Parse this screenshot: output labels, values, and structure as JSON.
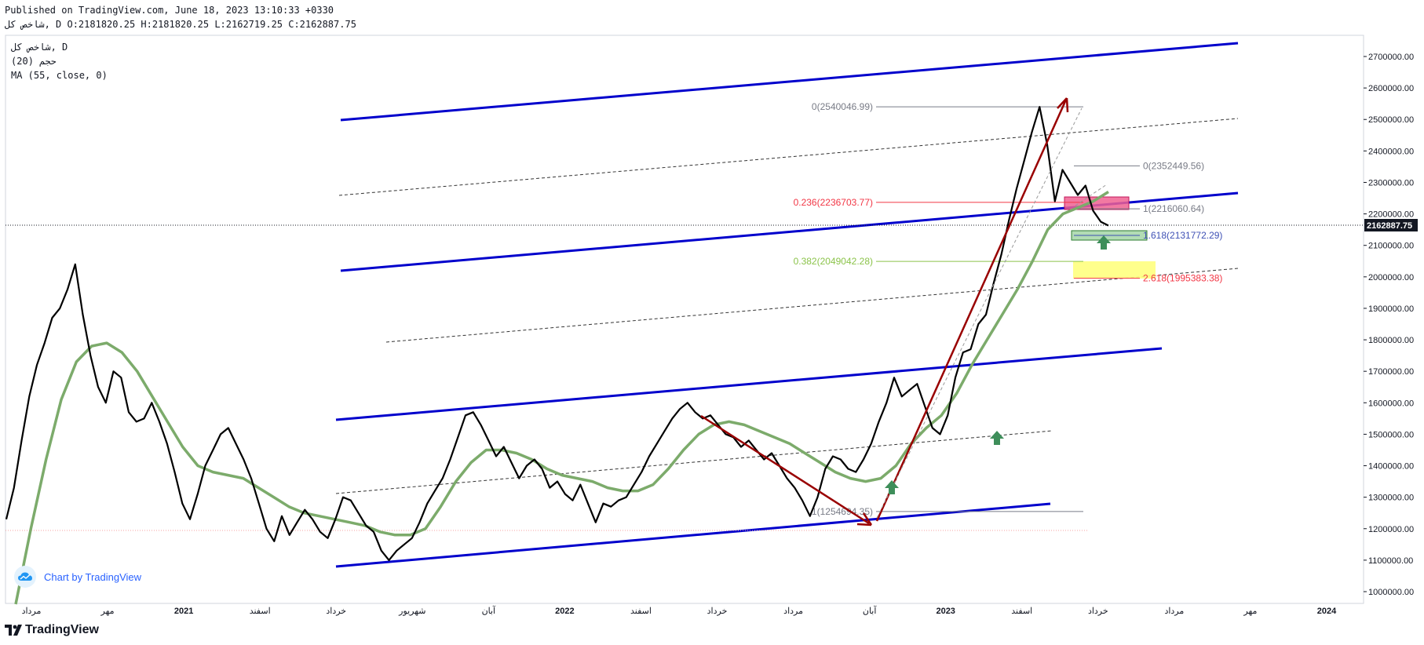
{
  "header": {
    "published": "Published on TradingView.com, June 18, 2023 13:10:33 +0330",
    "ohlc_line": "شاخص کل, D O:2181820.25 H:2181820.25 L:2162719.25 C:2162887.75"
  },
  "legend": {
    "symbol_line": "شاخص کل, D",
    "vol_line": "حجم (20)",
    "ma_line": "MA (55, close, 0)"
  },
  "watermark": {
    "text": "Chart by TradingView",
    "icon": "tradingview-cloud-icon"
  },
  "footer": {
    "logo_text": "TradingView",
    "icon": "tradingview-logo-icon"
  },
  "last_price_label": "2162887.75",
  "colors": {
    "price": "#000000",
    "ma": "#7cab6b",
    "channel": "#0000cc",
    "arrow": "#990000",
    "fib_red": "#f23645",
    "fib_green": "#8bc34a",
    "fib_blue": "#3f51b5",
    "fib_grey": "#787b86",
    "red_box": "#f06292",
    "green_box": "#a5d6a7",
    "yellow_box": "#ffff80",
    "up_arrow": "#3e8e5a"
  },
  "chart_data": {
    "type": "line",
    "y_range": [
      1000000,
      2700000
    ],
    "y_ticks": [
      "2700000.00",
      "2600000.00",
      "2500000.00",
      "2400000.00",
      "2300000.00",
      "2200000.00",
      "2100000.00",
      "2000000.00",
      "1900000.00",
      "1800000.00",
      "1700000.00",
      "1600000.00",
      "1500000.00",
      "1400000.00",
      "1300000.00",
      "1200000.00",
      "1100000.00",
      "1000000.00"
    ],
    "x_ticks": [
      {
        "label": "مرداد",
        "major": false
      },
      {
        "label": "مهر",
        "major": false
      },
      {
        "label": "2021",
        "major": true
      },
      {
        "label": "اسفند",
        "major": false
      },
      {
        "label": "خرداد",
        "major": false
      },
      {
        "label": "شهریور",
        "major": false
      },
      {
        "label": "آبان",
        "major": false
      },
      {
        "label": "2022",
        "major": true
      },
      {
        "label": "اسفند",
        "major": false
      },
      {
        "label": "خرداد",
        "major": false
      },
      {
        "label": "مرداد",
        "major": false
      },
      {
        "label": "آبان",
        "major": false
      },
      {
        "label": "2023",
        "major": true
      },
      {
        "label": "اسفند",
        "major": false
      },
      {
        "label": "خرداد",
        "major": false
      },
      {
        "label": "مرداد",
        "major": false
      },
      {
        "label": "مهر",
        "major": false
      },
      {
        "label": "2024",
        "major": true
      }
    ],
    "series": [
      {
        "name": "",
        "role": "price",
        "values": [
          1230000,
          1330000,
          1480000,
          1620000,
          1720000,
          1790000,
          1870000,
          1900000,
          1960000,
          2040000,
          1880000,
          1750000,
          1650000,
          1600000,
          1700000,
          1680000,
          1570000,
          1540000,
          1550000,
          1600000,
          1540000,
          1470000,
          1380000,
          1280000,
          1230000,
          1310000,
          1400000,
          1450000,
          1500000,
          1520000,
          1470000,
          1420000,
          1360000,
          1280000,
          1200000,
          1160000,
          1240000,
          1180000,
          1220000,
          1260000,
          1230000,
          1190000,
          1170000,
          1230000,
          1300000,
          1290000,
          1250000,
          1210000,
          1190000,
          1130000,
          1100000,
          1130000,
          1150000,
          1170000,
          1220000,
          1280000,
          1320000,
          1360000,
          1420000,
          1490000,
          1560000,
          1570000,
          1530000,
          1480000,
          1430000,
          1460000,
          1410000,
          1360000,
          1400000,
          1420000,
          1390000,
          1330000,
          1350000,
          1310000,
          1290000,
          1340000,
          1280000,
          1220000,
          1280000,
          1270000,
          1290000,
          1300000,
          1340000,
          1380000,
          1430000,
          1470000,
          1510000,
          1550000,
          1580000,
          1600000,
          1570000,
          1550000,
          1560000,
          1530000,
          1500000,
          1490000,
          1460000,
          1480000,
          1450000,
          1420000,
          1440000,
          1400000,
          1360000,
          1330000,
          1290000,
          1240000,
          1300000,
          1390000,
          1430000,
          1420000,
          1390000,
          1380000,
          1420000,
          1470000,
          1540000,
          1600000,
          1680000,
          1620000,
          1640000,
          1660000,
          1590000,
          1520000,
          1500000,
          1560000,
          1680000,
          1760000,
          1770000,
          1850000,
          1880000,
          1980000,
          2070000,
          2180000,
          2280000,
          2370000,
          2460000,
          2540000,
          2420000,
          2240000,
          2340000,
          2300000,
          2260000,
          2290000,
          2210000,
          2175000,
          2162888
        ],
        "shown_last": 2162887.75
      },
      {
        "name": "MA (55, close, 0)",
        "role": "ma",
        "values": [
          960000,
          1200000,
          1420000,
          1610000,
          1730000,
          1780000,
          1790000,
          1760000,
          1700000,
          1620000,
          1540000,
          1460000,
          1400000,
          1380000,
          1370000,
          1360000,
          1330000,
          1300000,
          1270000,
          1250000,
          1240000,
          1230000,
          1220000,
          1210000,
          1190000,
          1180000,
          1180000,
          1200000,
          1270000,
          1350000,
          1410000,
          1450000,
          1450000,
          1440000,
          1420000,
          1390000,
          1370000,
          1360000,
          1350000,
          1330000,
          1320000,
          1320000,
          1340000,
          1390000,
          1450000,
          1500000,
          1530000,
          1540000,
          1530000,
          1510000,
          1490000,
          1470000,
          1440000,
          1410000,
          1380000,
          1360000,
          1350000,
          1360000,
          1400000,
          1470000,
          1520000,
          1560000,
          1630000,
          1720000,
          1800000,
          1880000,
          1960000,
          2050000,
          2150000,
          2200000,
          2220000,
          2240000,
          2270000
        ]
      }
    ],
    "annotations": {
      "fib_retracement": [
        {
          "level": "0",
          "value": 2540046.99,
          "label": "0(2540046.99)"
        },
        {
          "level": "0.236",
          "value": 2236703.77,
          "label": "0.236(2236703.77)"
        },
        {
          "level": "0.382",
          "value": 2049042.28,
          "label": "0.382(2049042.28)"
        },
        {
          "level": "1",
          "value": 1254694.35,
          "label": "1(1254694.35)"
        }
      ],
      "fib_extension": [
        {
          "level": "0",
          "value": 2352449.56,
          "label": "0(2352449.56)"
        },
        {
          "level": "1",
          "value": 2216060.64,
          "label": "1(2216060.64)"
        },
        {
          "level": "1.618",
          "value": 2131772.29,
          "label": "1.618(2131772.29)"
        },
        {
          "level": "2.618",
          "value": 1995383.38,
          "label": "2.618(1995383.38)"
        }
      ]
    },
    "grid": false,
    "legend_position": "top-left"
  }
}
